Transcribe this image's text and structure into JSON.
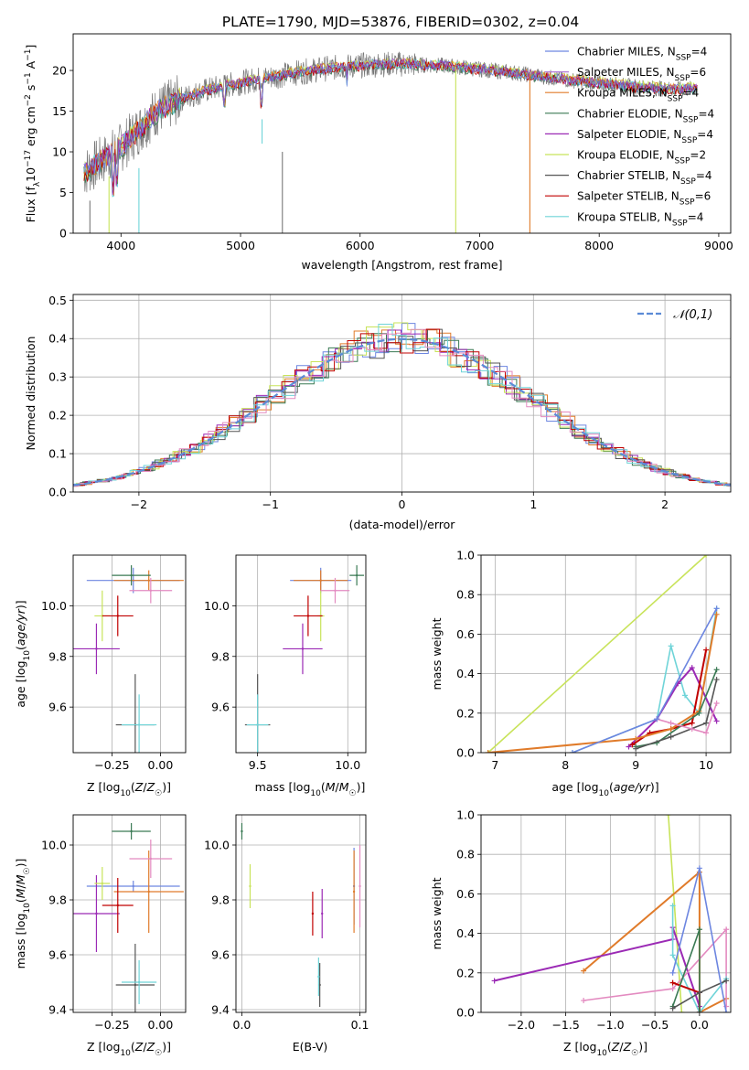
{
  "figure": {
    "title": "PLATE=1790, MJD=53876, FIBERID=0302, z=0.04"
  },
  "colors": {
    "blue": "#6d86e0",
    "purple": "#b07bd7",
    "orange": "#e07b2a",
    "green": "#3a7a54",
    "magenta": "#9b2ab5",
    "yellow": "#c8e35a",
    "gray": "#555555",
    "red": "#c00000",
    "cyan": "#6fd4d8",
    "pink": "#e38ac0",
    "normal": "#5b8bd6"
  },
  "chart_data": [
    {
      "panel": "spectrum",
      "type": "line",
      "title": "PLATE=1790, MJD=53876, FIBERID=0302, z=0.04",
      "xlabel": "wavelength [Angstrom, rest frame]",
      "ylabel": "Flux [f_λ10^-17 erg cm^-2 s^-1 A^-1]",
      "xlim": [
        3600,
        9100
      ],
      "ylim": [
        0,
        24.5
      ],
      "xticks": [
        4000,
        5000,
        6000,
        7000,
        8000,
        9000
      ],
      "yticks": [
        0,
        5,
        10,
        15,
        20
      ],
      "legend_position": "top-right",
      "legend": [
        "Chabrier MILES, N_SSP=4",
        "Salpeter MILES, N_SSP=6",
        "Kroupa MILES, N_SSP=4",
        "Chabrier ELODIE, N_SSP=4",
        "Salpeter ELODIE, N_SSP=4",
        "Kroupa ELODIE, N_SSP=2",
        "Chabrier STELIB, N_SSP=4",
        "Salpeter STELIB, N_SSP=6",
        "Kroupa STELIB, N_SSP=4"
      ],
      "continuum": {
        "x": [
          3690,
          3800,
          3900,
          4000,
          4100,
          4200,
          4300,
          4500,
          4700,
          4900,
          5100,
          5300,
          5500,
          5700,
          5900,
          6100,
          6300,
          6500,
          6700,
          6900,
          7100,
          7300,
          7500,
          7700,
          7900,
          8100,
          8300,
          8500,
          8700,
          8820
        ],
        "y": [
          7.5,
          8.5,
          9.5,
          10.5,
          12.0,
          13.5,
          15.0,
          16.5,
          17.5,
          18.2,
          18.8,
          19.3,
          19.8,
          20.2,
          20.5,
          20.7,
          20.8,
          20.7,
          20.6,
          20.3,
          20.0,
          19.7,
          19.3,
          18.9,
          18.6,
          18.3,
          18.0,
          17.8,
          17.7,
          17.8
        ]
      }
    },
    {
      "panel": "residuals",
      "type": "line",
      "xlabel": "(data-model)/error",
      "ylabel": "Normed distribution",
      "xlim": [
        -2.5,
        2.5
      ],
      "ylim": [
        0,
        0.515
      ],
      "xticks": [
        -2,
        -1,
        0,
        1,
        2
      ],
      "yticks": [
        0.0,
        0.1,
        0.2,
        0.3,
        0.4,
        0.5
      ],
      "legend": [
        "𝒩(0,1)"
      ],
      "legend_position": "top-right",
      "grid": true
    },
    {
      "panel": "age-Z",
      "type": "scatter",
      "xlabel": "Z [log10(Z/Z☉)]",
      "ylabel": "age  [log10(age/yr)]",
      "xlim": [
        -0.45,
        0.13
      ],
      "ylim": [
        9.42,
        10.2
      ],
      "xticks": [
        -0.25,
        0.0
      ],
      "yticks": [
        9.6,
        9.8,
        10.0
      ],
      "grid": true,
      "points": [
        {
          "x": -0.14,
          "y": 10.1,
          "xerr": 0.24,
          "yerr": 0.05,
          "color": "blue"
        },
        {
          "x": -0.06,
          "y": 10.1,
          "xerr": 0.18,
          "yerr": 0.04,
          "color": "orange"
        },
        {
          "x": -0.15,
          "y": 10.12,
          "xerr": 0.1,
          "yerr": 0.04,
          "color": "green"
        },
        {
          "x": -0.33,
          "y": 9.83,
          "xerr": 0.12,
          "yerr": 0.1,
          "color": "magenta"
        },
        {
          "x": -0.3,
          "y": 9.96,
          "xerr": 0.04,
          "yerr": 0.1,
          "color": "yellow"
        },
        {
          "x": -0.13,
          "y": 9.53,
          "xerr": 0.1,
          "yerr": 0.2,
          "color": "gray"
        },
        {
          "x": -0.22,
          "y": 9.96,
          "xerr": 0.08,
          "yerr": 0.08,
          "color": "red"
        },
        {
          "x": -0.11,
          "y": 9.53,
          "xerr": 0.09,
          "yerr": 0.12,
          "color": "cyan"
        },
        {
          "x": -0.05,
          "y": 10.06,
          "xerr": 0.11,
          "yerr": 0.05,
          "color": "pink"
        }
      ]
    },
    {
      "panel": "age-mass",
      "type": "scatter",
      "xlabel": "mass [log10(M/M☉)]",
      "xlim": [
        9.38,
        10.1
      ],
      "ylim": [
        9.42,
        10.2
      ],
      "xticks": [
        9.5,
        10.0
      ],
      "yticks": [
        9.6,
        9.8,
        10.0
      ],
      "grid": true,
      "points": [
        {
          "x": 9.85,
          "y": 10.1,
          "xerr": 0.17,
          "yerr": 0.05,
          "color": "blue"
        },
        {
          "x": 9.85,
          "y": 10.1,
          "xerr": 0.15,
          "yerr": 0.04,
          "color": "orange"
        },
        {
          "x": 10.05,
          "y": 10.12,
          "xerr": 0.04,
          "yerr": 0.04,
          "color": "green"
        },
        {
          "x": 9.75,
          "y": 9.83,
          "xerr": 0.11,
          "yerr": 0.1,
          "color": "magenta"
        },
        {
          "x": 9.85,
          "y": 9.96,
          "xerr": 0.02,
          "yerr": 0.1,
          "color": "yellow"
        },
        {
          "x": 9.5,
          "y": 9.53,
          "xerr": 0.07,
          "yerr": 0.2,
          "color": "gray"
        },
        {
          "x": 9.78,
          "y": 9.96,
          "xerr": 0.08,
          "yerr": 0.08,
          "color": "red"
        },
        {
          "x": 9.5,
          "y": 9.53,
          "xerr": 0.06,
          "yerr": 0.12,
          "color": "cyan"
        },
        {
          "x": 9.93,
          "y": 10.06,
          "xerr": 0.08,
          "yerr": 0.05,
          "color": "pink"
        }
      ]
    },
    {
      "panel": "weight-age",
      "type": "line",
      "xlabel": "age  [log10(age/yr)]",
      "ylabel": "mass weight",
      "xlim": [
        6.8,
        10.35
      ],
      "ylim": [
        0,
        1.0
      ],
      "xticks": [
        7,
        8,
        9,
        10
      ],
      "yticks": [
        0.0,
        0.2,
        0.4,
        0.6,
        0.8,
        1.0
      ],
      "grid": true,
      "series": [
        {
          "color": "yellow",
          "x": [
            6.9,
            10.0
          ],
          "y": [
            0.0,
            1.0
          ]
        },
        {
          "color": "cyan",
          "x": [
            8.1,
            9.3,
            9.5,
            9.7,
            9.9,
            10.15
          ],
          "y": [
            0.0,
            0.17,
            0.54,
            0.29,
            0.2,
            0.73
          ]
        },
        {
          "color": "magenta",
          "x": [
            8.9,
            9.3,
            9.6,
            9.8,
            10.15
          ],
          "y": [
            0.03,
            0.17,
            0.35,
            0.43,
            0.16
          ]
        },
        {
          "color": "red",
          "x": [
            8.95,
            9.2,
            9.5,
            9.8,
            10.0
          ],
          "y": [
            0.04,
            0.1,
            0.12,
            0.15,
            0.52
          ]
        },
        {
          "color": "orange",
          "x": [
            6.9,
            9.0,
            9.5,
            9.9,
            10.15
          ],
          "y": [
            0.0,
            0.07,
            0.12,
            0.21,
            0.7
          ]
        },
        {
          "color": "green",
          "x": [
            9.0,
            9.3,
            9.9,
            10.15
          ],
          "y": [
            0.03,
            0.05,
            0.2,
            0.42
          ]
        },
        {
          "color": "gray",
          "x": [
            9.0,
            9.5,
            10.0,
            10.15
          ],
          "y": [
            0.02,
            0.08,
            0.15,
            0.37
          ]
        },
        {
          "color": "pink",
          "x": [
            9.3,
            9.5,
            9.8,
            10.0,
            10.15
          ],
          "y": [
            0.17,
            0.15,
            0.12,
            0.1,
            0.25
          ]
        },
        {
          "color": "blue",
          "x": [
            8.1,
            9.3,
            10.15
          ],
          "y": [
            0.0,
            0.17,
            0.73
          ]
        }
      ]
    },
    {
      "panel": "mass-Z",
      "type": "scatter",
      "xlabel": "Z [log10(Z/Z☉)]",
      "ylabel": "mass [log10(M/M☉)]",
      "xlim": [
        -0.45,
        0.13
      ],
      "ylim": [
        9.39,
        10.11
      ],
      "xticks": [
        -0.25,
        0.0
      ],
      "yticks": [
        9.4,
        9.6,
        9.8,
        10.0
      ],
      "grid": true,
      "points": [
        {
          "x": -0.14,
          "y": 9.85,
          "xerr": 0.24,
          "yerr": 0.02,
          "color": "blue"
        },
        {
          "x": -0.06,
          "y": 9.83,
          "xerr": 0.18,
          "yerr": 0.15,
          "color": "orange"
        },
        {
          "x": -0.15,
          "y": 10.05,
          "xerr": 0.1,
          "yerr": 0.03,
          "color": "green"
        },
        {
          "x": -0.33,
          "y": 9.75,
          "xerr": 0.12,
          "yerr": 0.14,
          "color": "magenta"
        },
        {
          "x": -0.3,
          "y": 9.86,
          "xerr": 0.04,
          "yerr": 0.06,
          "color": "yellow"
        },
        {
          "x": -0.13,
          "y": 9.49,
          "xerr": 0.1,
          "yerr": 0.15,
          "color": "gray"
        },
        {
          "x": -0.22,
          "y": 9.78,
          "xerr": 0.08,
          "yerr": 0.1,
          "color": "red"
        },
        {
          "x": -0.11,
          "y": 9.5,
          "xerr": 0.09,
          "yerr": 0.08,
          "color": "cyan"
        },
        {
          "x": -0.05,
          "y": 9.95,
          "xerr": 0.11,
          "yerr": 0.07,
          "color": "pink"
        }
      ]
    },
    {
      "panel": "mass-EBV",
      "type": "scatter",
      "xlabel": "E(B-V)",
      "xlim": [
        -0.005,
        0.105
      ],
      "ylim": [
        9.39,
        10.11
      ],
      "xticks": [
        0.0,
        0.1
      ],
      "yticks": [
        9.4,
        9.6,
        9.8,
        10.0
      ],
      "grid": true,
      "points": [
        {
          "x": 0.095,
          "y": 9.85,
          "xerr": 0.0,
          "yerr": 0.14,
          "color": "blue"
        },
        {
          "x": 0.095,
          "y": 9.83,
          "xerr": 0.0,
          "yerr": 0.15,
          "color": "orange"
        },
        {
          "x": 0.0,
          "y": 10.05,
          "xerr": 0.0,
          "yerr": 0.03,
          "color": "green"
        },
        {
          "x": 0.068,
          "y": 9.75,
          "xerr": 0.0,
          "yerr": 0.09,
          "color": "magenta"
        },
        {
          "x": 0.007,
          "y": 9.85,
          "xerr": 0.0,
          "yerr": 0.08,
          "color": "yellow"
        },
        {
          "x": 0.066,
          "y": 9.49,
          "xerr": 0.0,
          "yerr": 0.08,
          "color": "gray"
        },
        {
          "x": 0.06,
          "y": 9.75,
          "xerr": 0.0,
          "yerr": 0.08,
          "color": "red"
        },
        {
          "x": 0.065,
          "y": 9.52,
          "xerr": 0.0,
          "yerr": 0.07,
          "color": "cyan"
        },
        {
          "x": 0.1,
          "y": 9.85,
          "xerr": 0.0,
          "yerr": 0.15,
          "color": "pink"
        }
      ]
    },
    {
      "panel": "weight-Z",
      "type": "line",
      "xlabel": "Z [log10(Z/Z☉)]",
      "ylabel": "mass weight",
      "xlim": [
        -2.45,
        0.35
      ],
      "ylim": [
        0,
        1.0
      ],
      "xticks": [
        -2.0,
        -1.5,
        -1.0,
        -0.5,
        0.0
      ],
      "yticks": [
        0.0,
        0.2,
        0.4,
        0.6,
        0.8,
        1.0
      ],
      "grid": true,
      "series": [
        {
          "color": "yellow",
          "x": [
            -0.35,
            -0.2
          ],
          "y": [
            1.0,
            0.0
          ]
        },
        {
          "color": "orange",
          "x": [
            -1.3,
            0.0,
            0.0,
            0.3
          ],
          "y": [
            0.21,
            0.71,
            0.0,
            0.07
          ]
        },
        {
          "color": "magenta",
          "x": [
            -2.3,
            -0.3,
            -0.3,
            0.0,
            0.0
          ],
          "y": [
            0.16,
            0.37,
            0.43,
            0.03,
            0.0
          ]
        },
        {
          "color": "pink",
          "x": [
            -1.3,
            -0.3,
            0.3,
            0.3
          ],
          "y": [
            0.06,
            0.12,
            0.42,
            0.03
          ]
        },
        {
          "color": "cyan",
          "x": [
            -0.3,
            -0.3,
            0.0,
            0.3
          ],
          "y": [
            0.54,
            0.29,
            0.0,
            0.17
          ]
        },
        {
          "color": "red",
          "x": [
            -0.3,
            0.0,
            0.0
          ],
          "y": [
            0.15,
            0.1,
            0.0
          ]
        },
        {
          "color": "green",
          "x": [
            -0.3,
            0.0,
            0.0
          ],
          "y": [
            0.03,
            0.42,
            0.0
          ]
        },
        {
          "color": "gray",
          "x": [
            -0.3,
            0.0,
            0.3
          ],
          "y": [
            0.02,
            0.1,
            0.16
          ]
        },
        {
          "color": "blue",
          "x": [
            -0.3,
            0.0,
            0.3
          ],
          "y": [
            0.2,
            0.73,
            0.0
          ]
        }
      ]
    }
  ]
}
